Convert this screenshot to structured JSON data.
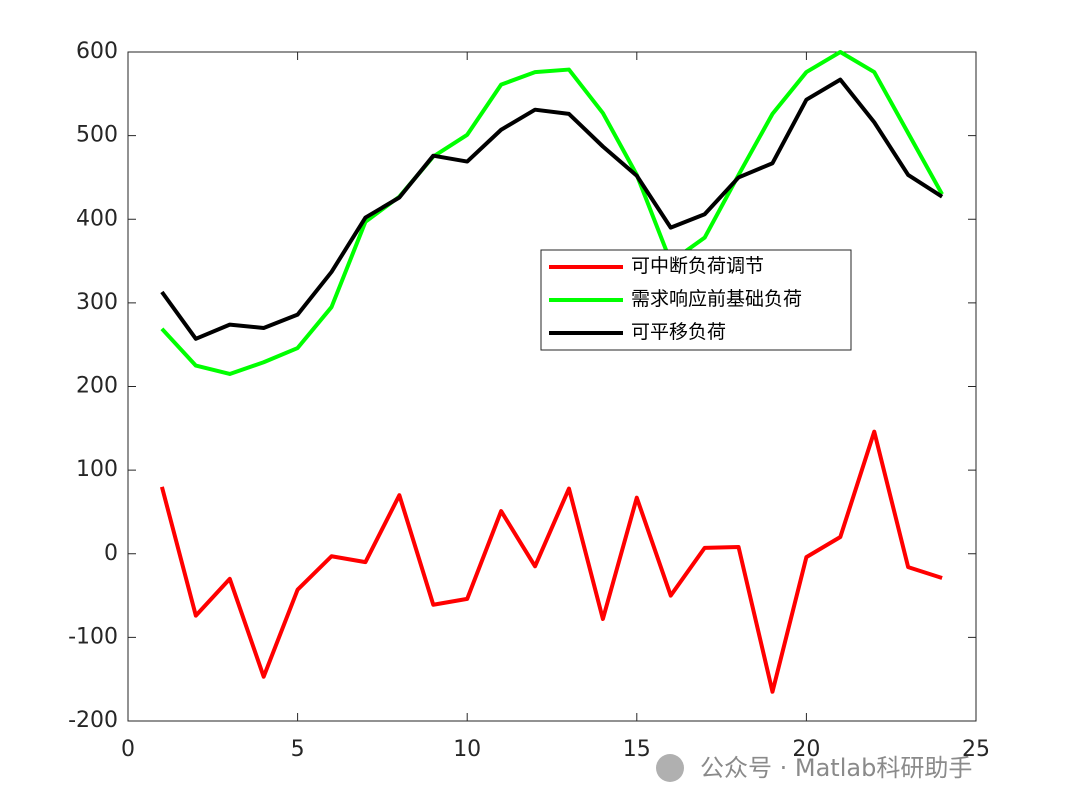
{
  "chart_data": {
    "type": "line",
    "x": [
      1,
      2,
      3,
      4,
      5,
      6,
      7,
      8,
      9,
      10,
      11,
      12,
      13,
      14,
      15,
      16,
      17,
      18,
      19,
      20,
      21,
      22,
      23,
      24
    ],
    "series": [
      {
        "name": "可中断负荷调节",
        "color": "#ff0000",
        "values": [
          80,
          -74,
          -30,
          -147,
          -43,
          -3,
          -10,
          70,
          -61,
          -54,
          51,
          -15,
          78,
          -78,
          67,
          -50,
          7,
          8,
          -165,
          -4,
          20,
          146,
          -16,
          -29
        ]
      },
      {
        "name": "需求响应前基础负荷",
        "color": "#00ff00",
        "values": [
          269,
          225,
          215,
          229,
          246,
          295,
          397,
          427,
          475,
          501,
          561,
          576,
          579,
          527,
          453,
          349,
          378,
          453,
          526,
          576,
          600,
          576,
          503,
          430
        ]
      },
      {
        "name": "可平移负荷",
        "color": "#000000",
        "values": [
          313,
          257,
          274,
          270,
          286,
          337,
          402,
          426,
          476,
          469,
          507,
          531,
          526,
          487,
          452,
          390,
          406,
          450,
          467,
          543,
          567,
          516,
          453,
          427
        ]
      }
    ],
    "xlim": [
      0,
      25
    ],
    "xticks": [
      0,
      5,
      10,
      15,
      20,
      25
    ],
    "ylim": [
      -200,
      600
    ],
    "yticks": [
      -200,
      -100,
      0,
      100,
      200,
      300,
      400,
      500,
      600
    ],
    "grid": false,
    "legend_loc": "center",
    "watermark": "公众号 · Matlab科研助手"
  }
}
